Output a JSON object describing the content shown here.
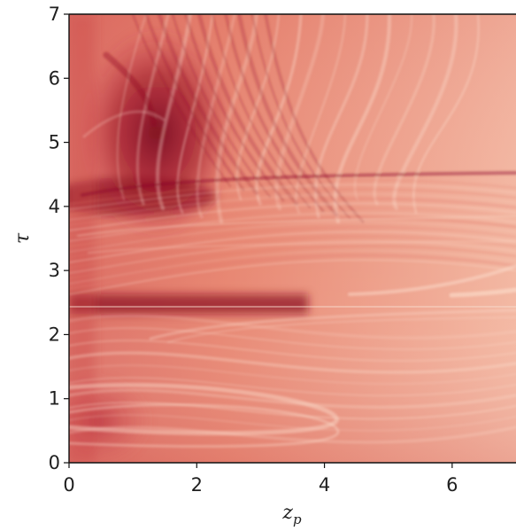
{
  "chart_data": {
    "type": "heatmap",
    "title": "",
    "xlabel": "z",
    "xlabel_subscript": "p",
    "ylabel": "τ",
    "xlim": [
      0,
      7
    ],
    "ylim": [
      0,
      7
    ],
    "x_ticks": [
      0,
      2,
      4,
      6
    ],
    "y_ticks": [
      0,
      1,
      2,
      3,
      4,
      5,
      6,
      7
    ],
    "x_tick_labels": [
      "0",
      "2",
      "4",
      "6"
    ],
    "y_tick_labels": [
      "0",
      "1",
      "2",
      "3",
      "4",
      "5",
      "6",
      "7"
    ],
    "colormap": "Reds",
    "colors": {
      "light": "#f3b9a0",
      "mid": "#e3796a",
      "dark": "#8b0d21",
      "highlight": "#fde3d2"
    },
    "grid": false,
    "legend": "none"
  }
}
